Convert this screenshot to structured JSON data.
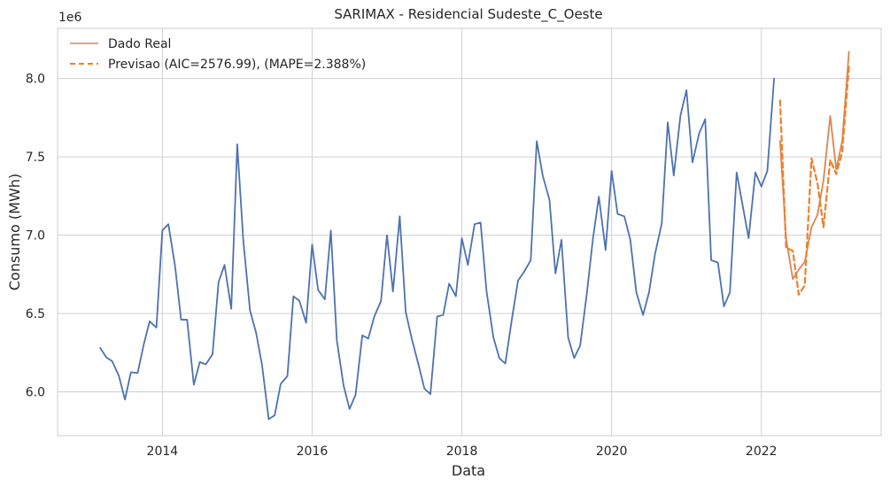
{
  "chart_data": {
    "type": "line",
    "title": "SARIMAX - Residencial Sudeste_C_Oeste",
    "xlabel": "Data",
    "ylabel": "Consumo (MWh)",
    "y_offset_label": "1e6",
    "xlim": [
      2012.6,
      2023.6
    ],
    "ylim": [
      5.72,
      8.32
    ],
    "x_ticks": [
      2014,
      2016,
      2018,
      2020,
      2022
    ],
    "x_tick_labels": [
      "2014",
      "2016",
      "2018",
      "2020",
      "2022"
    ],
    "y_ticks": [
      6.0,
      6.5,
      7.0,
      7.5,
      8.0
    ],
    "y_tick_labels": [
      "6.0",
      "6.5",
      "7.0",
      "7.5",
      "8.0"
    ],
    "grid": true,
    "legend_position": "top-left",
    "legend": [
      {
        "label": "Dado Real",
        "style": "solid",
        "color": "#DD8452"
      },
      {
        "label": "Previsao (AIC=2576.99), (MAPE=2.388%)",
        "style": "dashed",
        "color": "#F07F2A"
      }
    ],
    "series": [
      {
        "name": "",
        "color": "#4C72B0",
        "style": "solid",
        "x": [
          2013.17,
          2013.25,
          2013.33,
          2013.42,
          2013.5,
          2013.58,
          2013.67,
          2013.75,
          2013.83,
          2013.92,
          2014.0,
          2014.08,
          2014.17,
          2014.25,
          2014.33,
          2014.42,
          2014.5,
          2014.58,
          2014.67,
          2014.75,
          2014.83,
          2014.92,
          2015.0,
          2015.08,
          2015.17,
          2015.25,
          2015.33,
          2015.42,
          2015.5,
          2015.58,
          2015.67,
          2015.75,
          2015.83,
          2015.92,
          2016.0,
          2016.08,
          2016.17,
          2016.25,
          2016.33,
          2016.42,
          2016.5,
          2016.58,
          2016.67,
          2016.75,
          2016.83,
          2016.92,
          2017.0,
          2017.08,
          2017.17,
          2017.25,
          2017.33,
          2017.42,
          2017.5,
          2017.58,
          2017.67,
          2017.75,
          2017.83,
          2017.92,
          2018.0,
          2018.08,
          2018.17,
          2018.25,
          2018.33,
          2018.42,
          2018.5,
          2018.58,
          2018.67,
          2018.75,
          2018.83,
          2018.92,
          2019.0,
          2019.08,
          2019.17,
          2019.25,
          2019.33,
          2019.42,
          2019.5,
          2019.58,
          2019.67,
          2019.75,
          2019.83,
          2019.92,
          2020.0,
          2020.08,
          2020.17,
          2020.25,
          2020.33,
          2020.42,
          2020.5,
          2020.58,
          2020.67,
          2020.75,
          2020.83,
          2020.92,
          2021.0,
          2021.08,
          2021.17,
          2021.25,
          2021.33,
          2021.42,
          2021.5,
          2021.58,
          2021.67,
          2021.75,
          2021.83,
          2021.92,
          2022.0,
          2022.08,
          2022.17
        ],
        "y": [
          6.28,
          6.22,
          6.195,
          6.1,
          5.95,
          6.125,
          6.12,
          6.3,
          6.45,
          6.41,
          7.03,
          7.07,
          6.8,
          6.46,
          6.46,
          6.045,
          6.19,
          6.175,
          6.24,
          6.7,
          6.81,
          6.53,
          7.58,
          6.97,
          6.52,
          6.38,
          6.175,
          5.825,
          5.85,
          6.05,
          6.1,
          6.61,
          6.58,
          6.44,
          6.94,
          6.65,
          6.59,
          7.03,
          6.33,
          6.04,
          5.89,
          5.98,
          6.36,
          6.34,
          6.48,
          6.58,
          7.0,
          6.64,
          7.12,
          6.51,
          6.34,
          6.175,
          6.02,
          5.985,
          6.48,
          6.49,
          6.69,
          6.61,
          6.98,
          6.81,
          7.07,
          7.08,
          6.64,
          6.35,
          6.215,
          6.18,
          6.47,
          6.71,
          6.765,
          6.84,
          7.6,
          7.38,
          7.225,
          6.755,
          6.97,
          6.345,
          6.215,
          6.295,
          6.63,
          6.975,
          7.245,
          6.905,
          7.41,
          7.135,
          7.12,
          6.97,
          6.635,
          6.49,
          6.635,
          6.88,
          7.075,
          7.72,
          7.38,
          7.765,
          7.925,
          7.465,
          7.65,
          7.74,
          6.84,
          6.825,
          6.545,
          6.635,
          7.4,
          7.19,
          6.98,
          7.4,
          7.31,
          7.41,
          8.0
        ]
      },
      {
        "name": "Dado Real",
        "color": "#DD8452",
        "style": "solid",
        "x": [
          2022.25,
          2022.33,
          2022.42,
          2022.5,
          2022.58,
          2022.67,
          2022.75,
          2022.83,
          2022.92,
          2023.0,
          2023.08,
          2023.17
        ],
        "y": [
          7.6,
          6.98,
          6.72,
          6.78,
          6.83,
          7.05,
          7.13,
          7.35,
          7.76,
          7.42,
          7.6,
          8.17
        ]
      },
      {
        "name": "Previsao (AIC=2576.99), (MAPE=2.388%)",
        "color": "#F07F2A",
        "style": "dashed",
        "x": [
          2022.25,
          2022.33,
          2022.42,
          2022.5,
          2022.58,
          2022.67,
          2022.75,
          2022.83,
          2022.92,
          2023.0,
          2023.08,
          2023.17
        ],
        "y": [
          7.86,
          6.92,
          6.9,
          6.62,
          6.68,
          7.49,
          7.33,
          7.05,
          7.48,
          7.39,
          7.53,
          8.08
        ]
      }
    ]
  }
}
